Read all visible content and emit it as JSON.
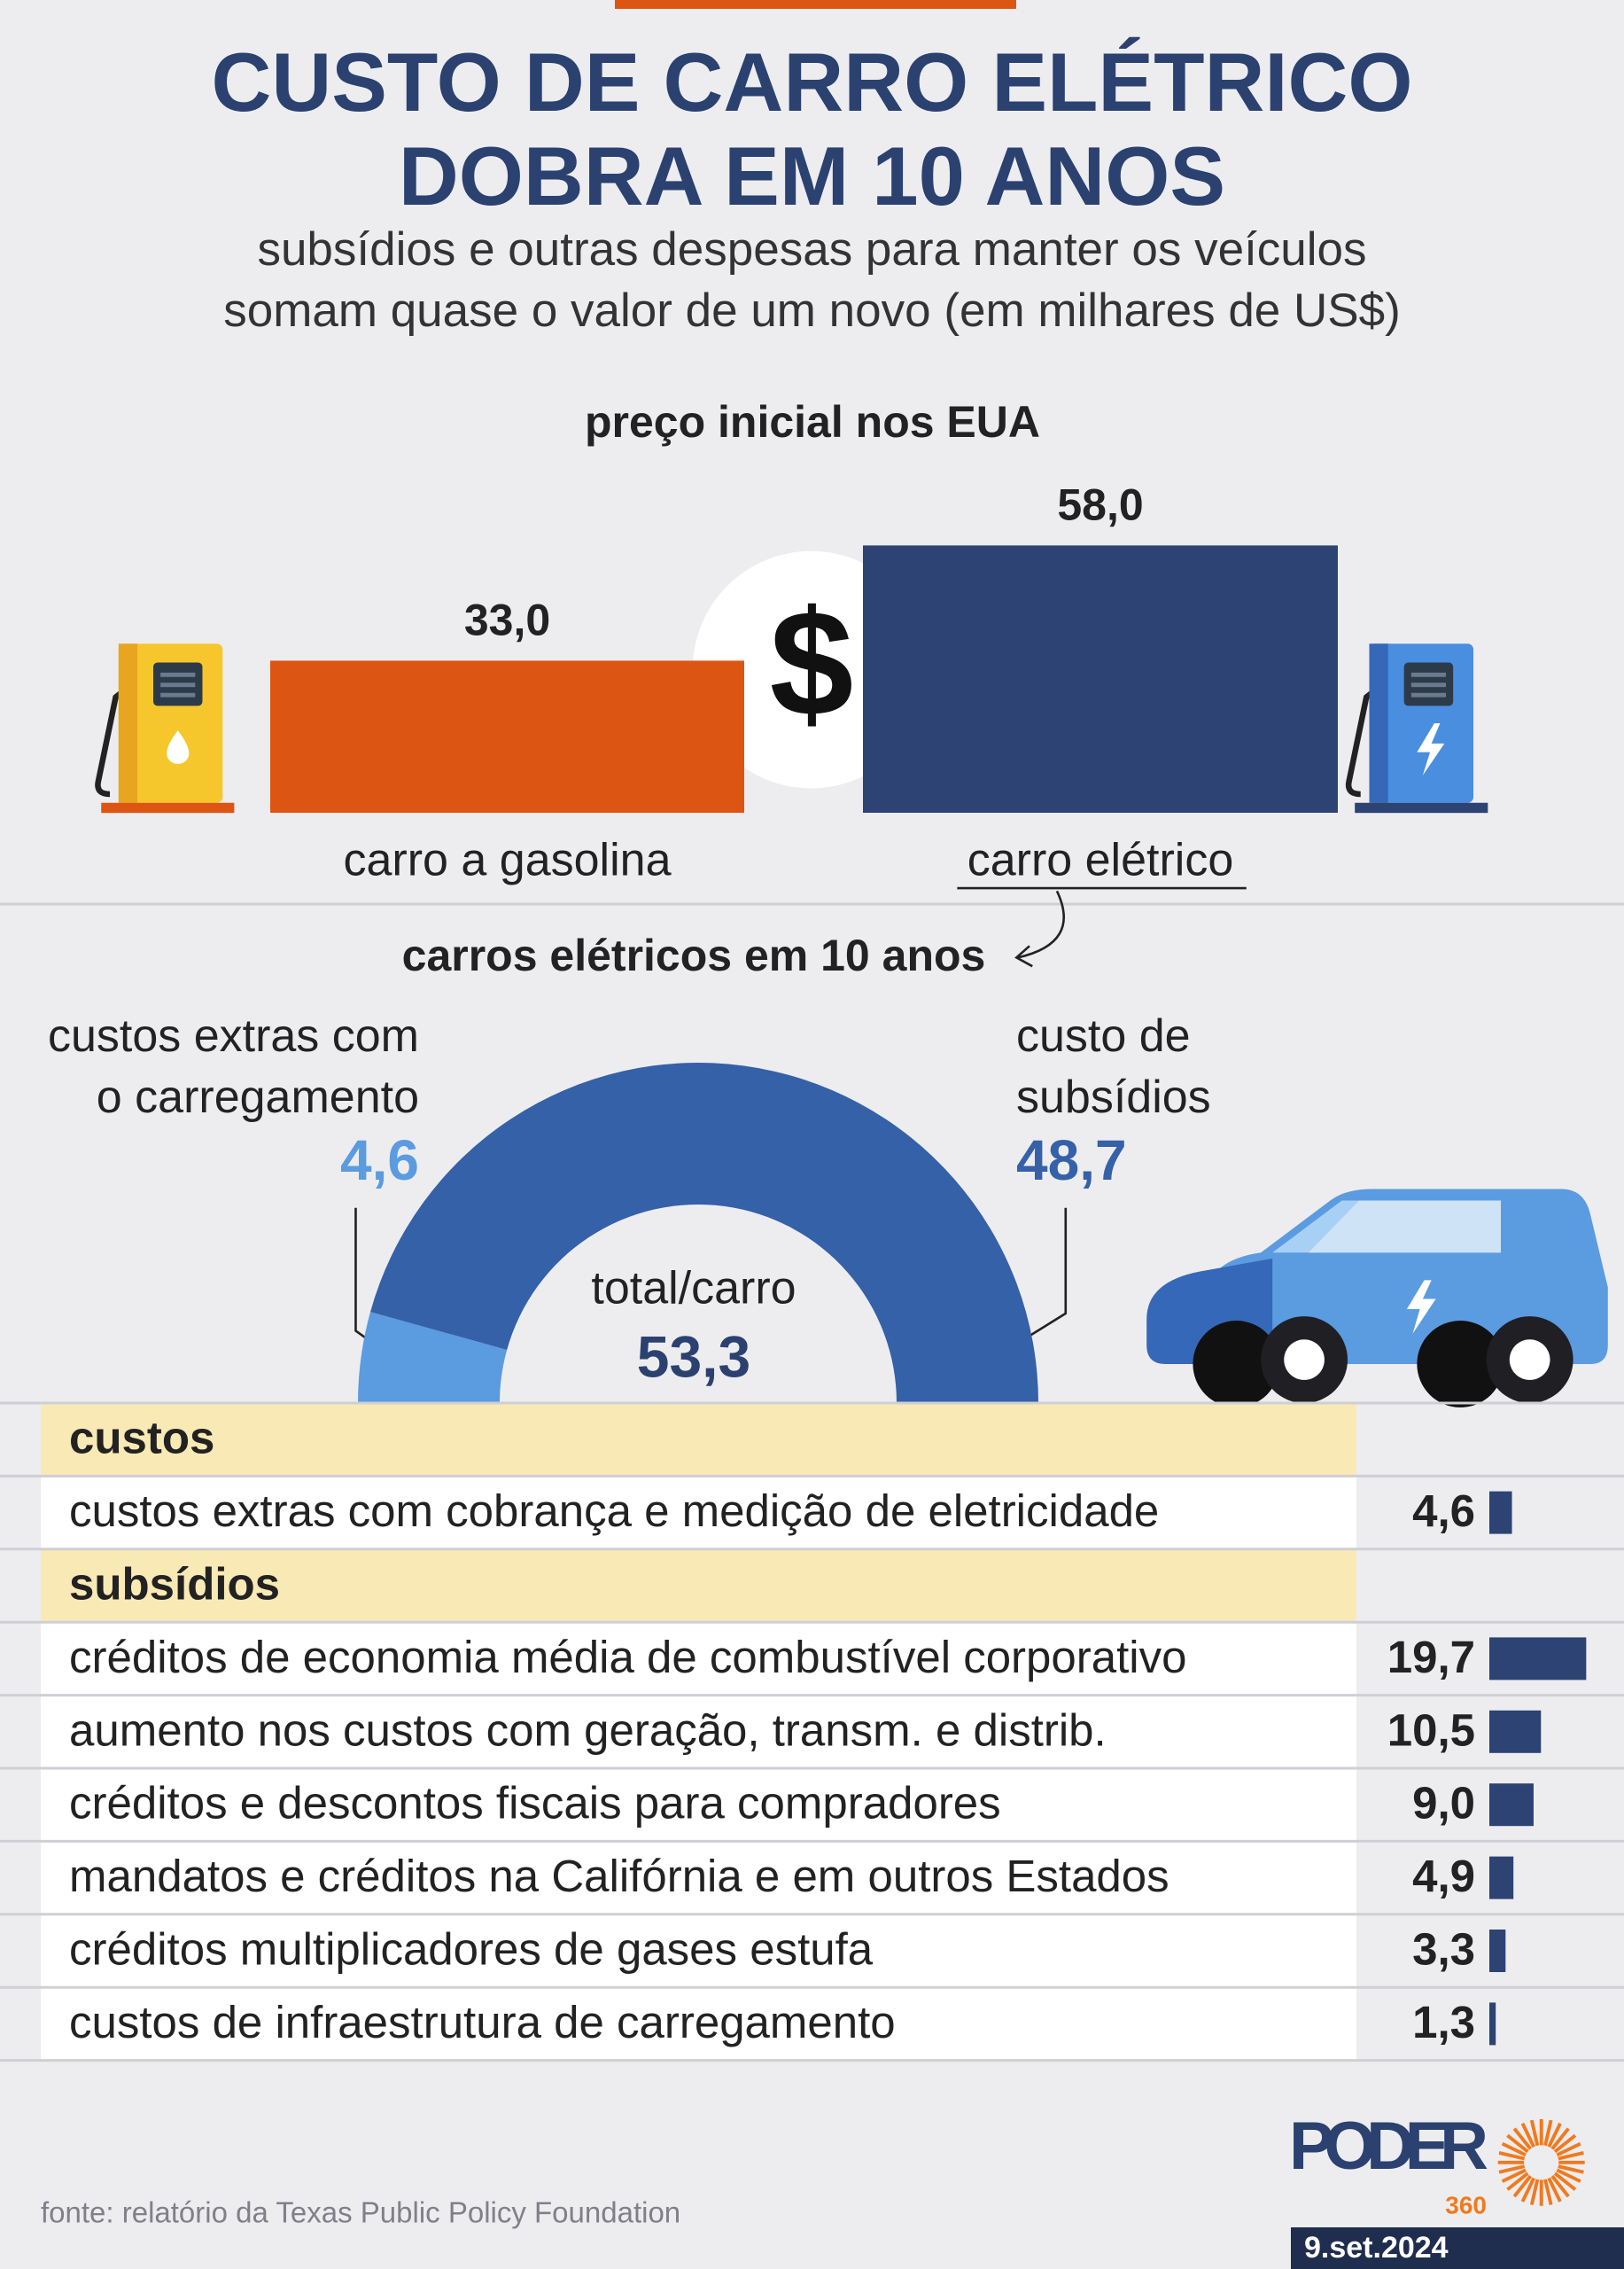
{
  "header": {
    "title": "CUSTO DE CARRO ELÉTRICO\nDOBRA EM 10 ANOS",
    "subtitle": "subsídios e outras despesas para manter os veículos\nsomam quase o valor de um novo (em milhares de US$)"
  },
  "chart_data": [
    {
      "type": "bar",
      "title": "preço inicial nos EUA",
      "categories": [
        "carro a gasolina",
        "carro elétrico"
      ],
      "values": [
        33.0,
        58.0
      ],
      "value_labels": [
        "33,0",
        "58,0"
      ],
      "colors": [
        "#dd5513",
        "#2c4373"
      ],
      "center_symbol": "$"
    },
    {
      "type": "half-donut",
      "title": "carros elétricos em 10 anos",
      "categories": [
        "custos extras com\no carregamento",
        "custo de\nsubsídios"
      ],
      "values": [
        4.6,
        48.7
      ],
      "value_labels": [
        "4,6",
        "48,7"
      ],
      "colors": [
        "#5b9be0",
        "#3461a8"
      ],
      "total_label": "total/carro",
      "total": 53.3,
      "total_value_label": "53,3"
    },
    {
      "type": "table-bar",
      "color": "#2c4373",
      "groups": [
        {
          "name": "custos",
          "categories": [
            "custos extras com cobrança e medição de eletricidade"
          ],
          "values": [
            4.6
          ],
          "value_labels": [
            "4,6"
          ]
        },
        {
          "name": "subsídios",
          "categories": [
            "créditos de economia média de combustível corporativo",
            "aumento nos custos com geração, transm. e distrib.",
            "créditos e descontos fiscais para compradores",
            "mandatos e créditos na Califórnia e em outros Estados",
            "créditos multiplicadores de gases estufa",
            "custos de infraestrutura de carregamento"
          ],
          "values": [
            19.7,
            10.5,
            9.0,
            4.9,
            3.3,
            1.3
          ],
          "value_labels": [
            "19,7",
            "10,5",
            "9,0",
            "4,9",
            "3,3",
            "1,3"
          ]
        }
      ]
    }
  ],
  "source": "fonte: relatório da Texas Public Policy Foundation",
  "logo": {
    "name": "PODER",
    "number": "360"
  },
  "date": "9.set.2024"
}
